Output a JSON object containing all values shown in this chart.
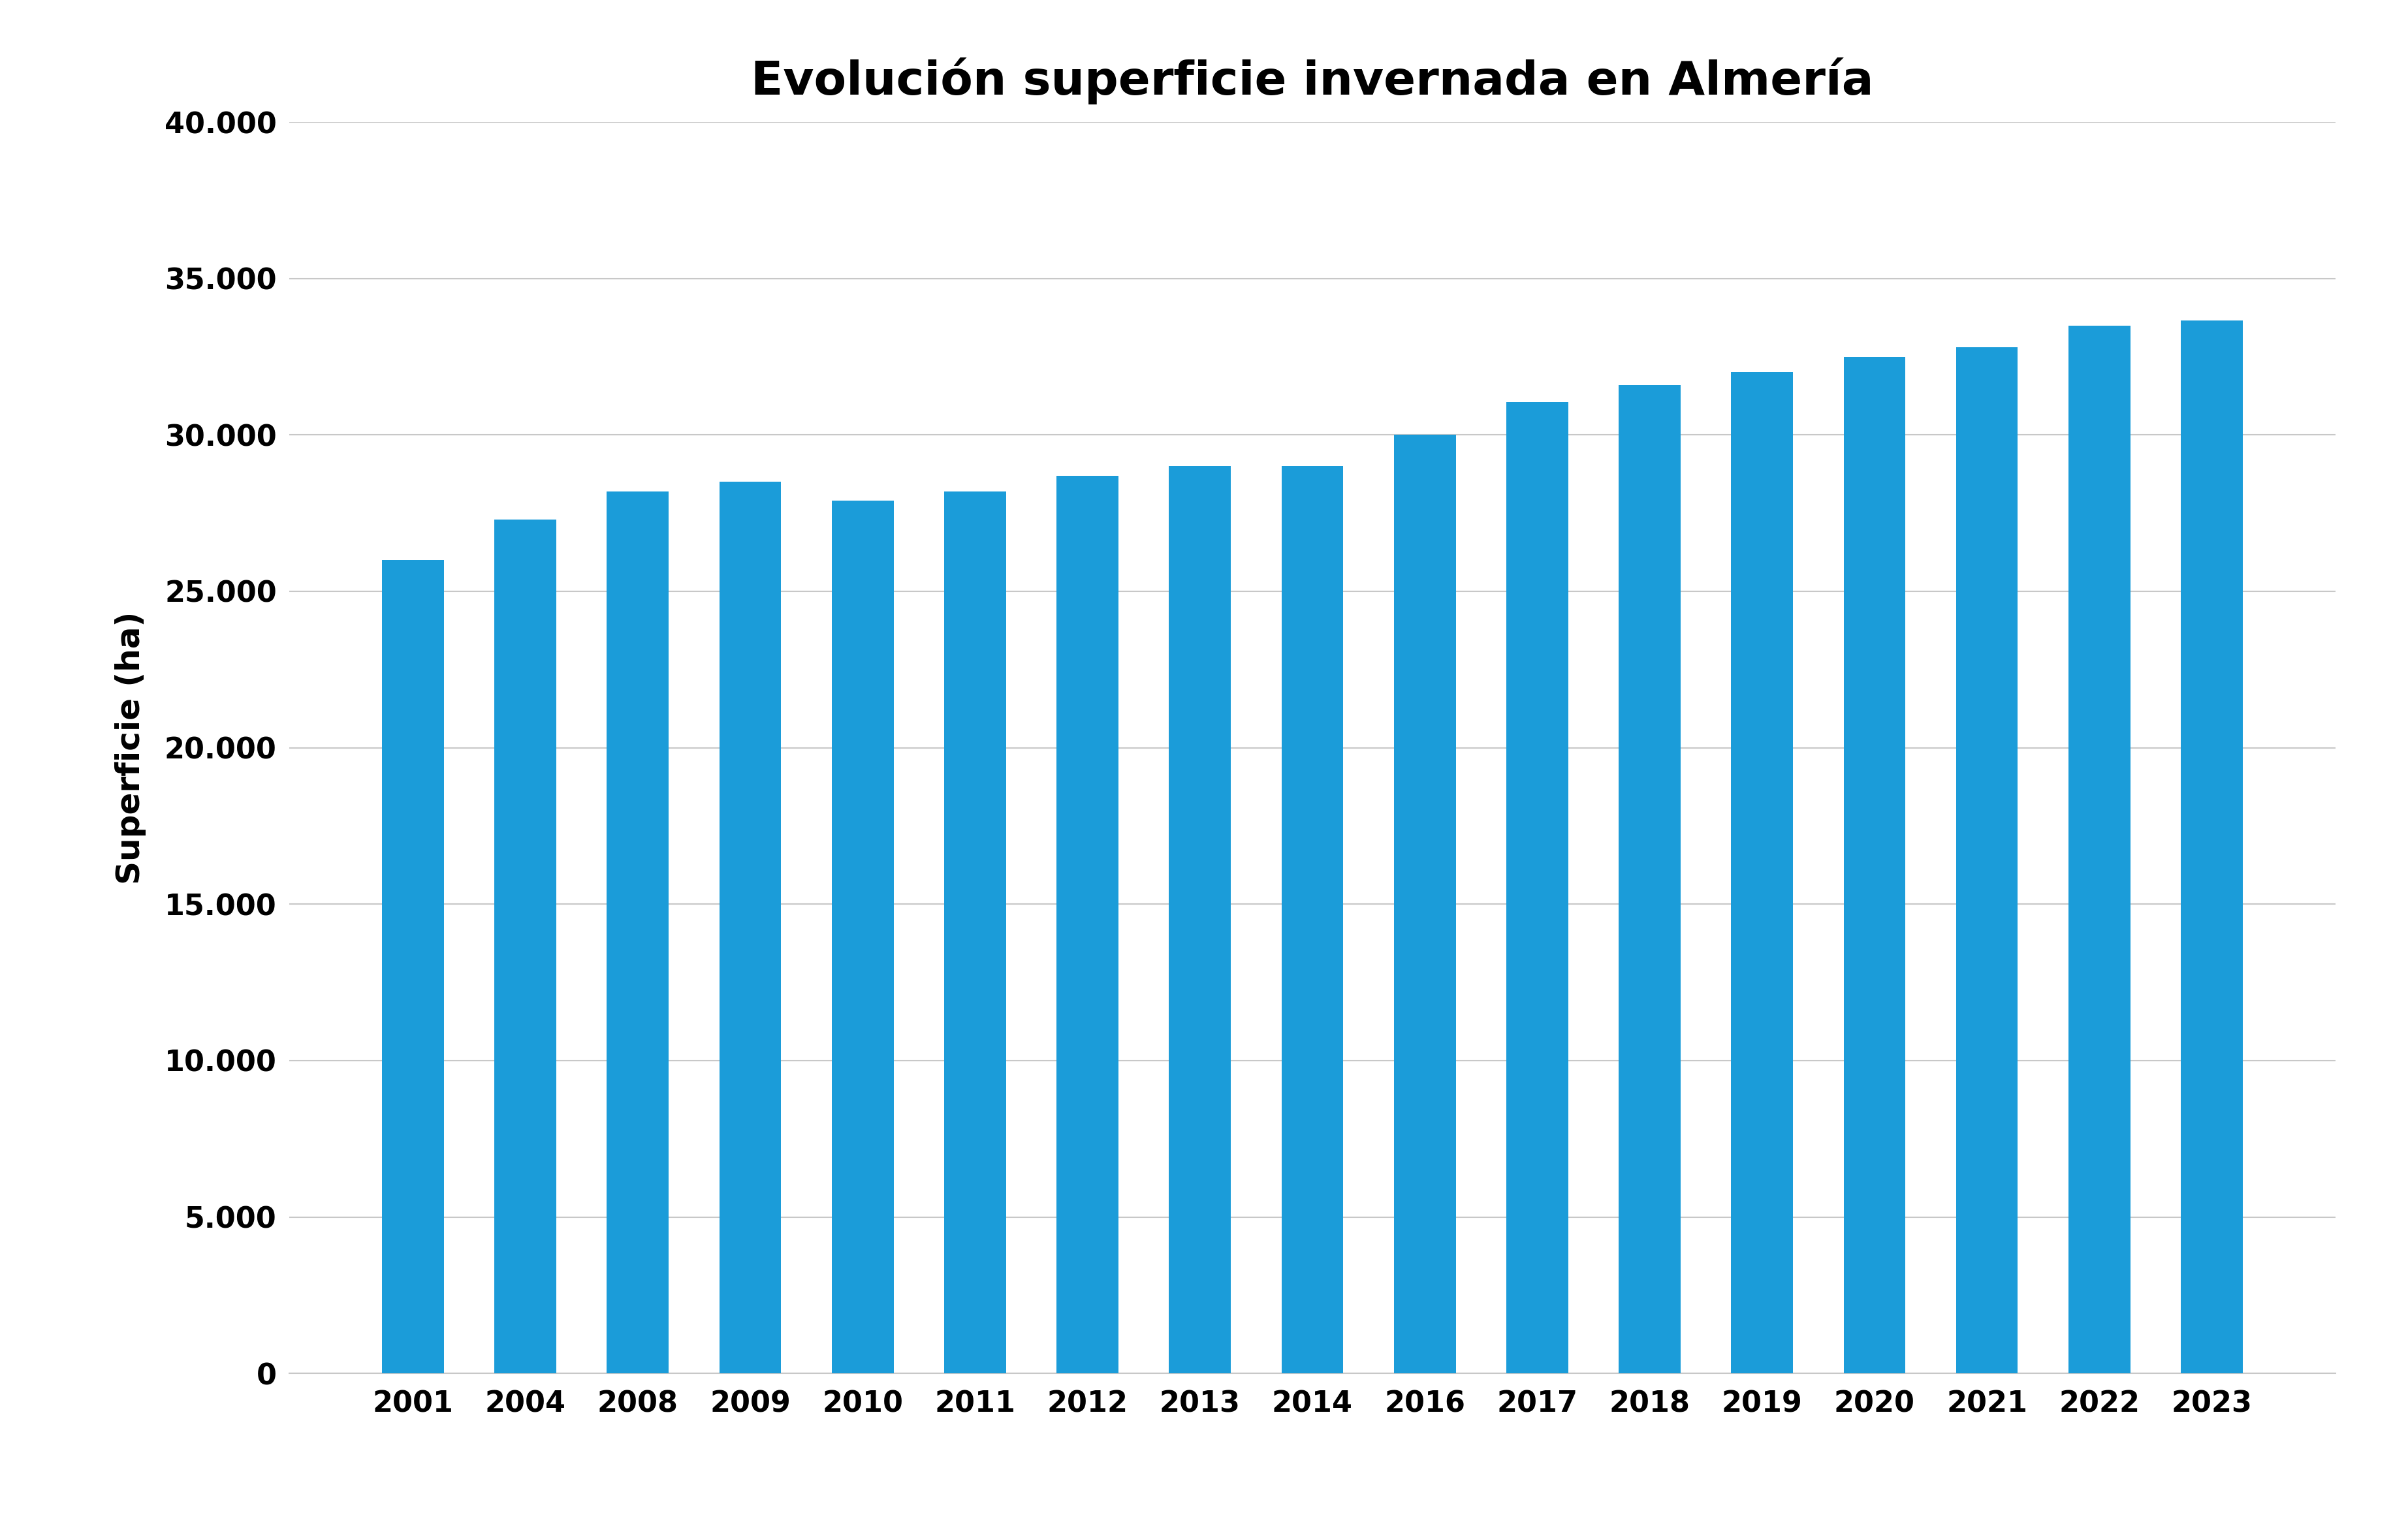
{
  "title": "Evolución superficie invernada en Almería",
  "xlabel": "",
  "ylabel": "Superficie (ha)",
  "categories": [
    "2001",
    "2004",
    "2008",
    "2009",
    "2010",
    "2011",
    "2012",
    "2013",
    "2014",
    "2016",
    "2017",
    "2018",
    "2019",
    "2020",
    "2021",
    "2022",
    "2023"
  ],
  "values": [
    26000,
    27300,
    28200,
    28500,
    27900,
    28200,
    28700,
    29000,
    29000,
    30000,
    31050,
    31600,
    32000,
    32500,
    32800,
    33500,
    33650
  ],
  "bar_color": "#1B9CD9",
  "ylim": [
    0,
    40000
  ],
  "yticks": [
    0,
    5000,
    10000,
    15000,
    20000,
    25000,
    30000,
    35000,
    40000
  ],
  "grid_color": "#C8C8C8",
  "background_color": "#FFFFFF",
  "title_fontsize": 52,
  "axis_label_fontsize": 36,
  "tick_fontsize": 32,
  "bar_width": 0.55
}
